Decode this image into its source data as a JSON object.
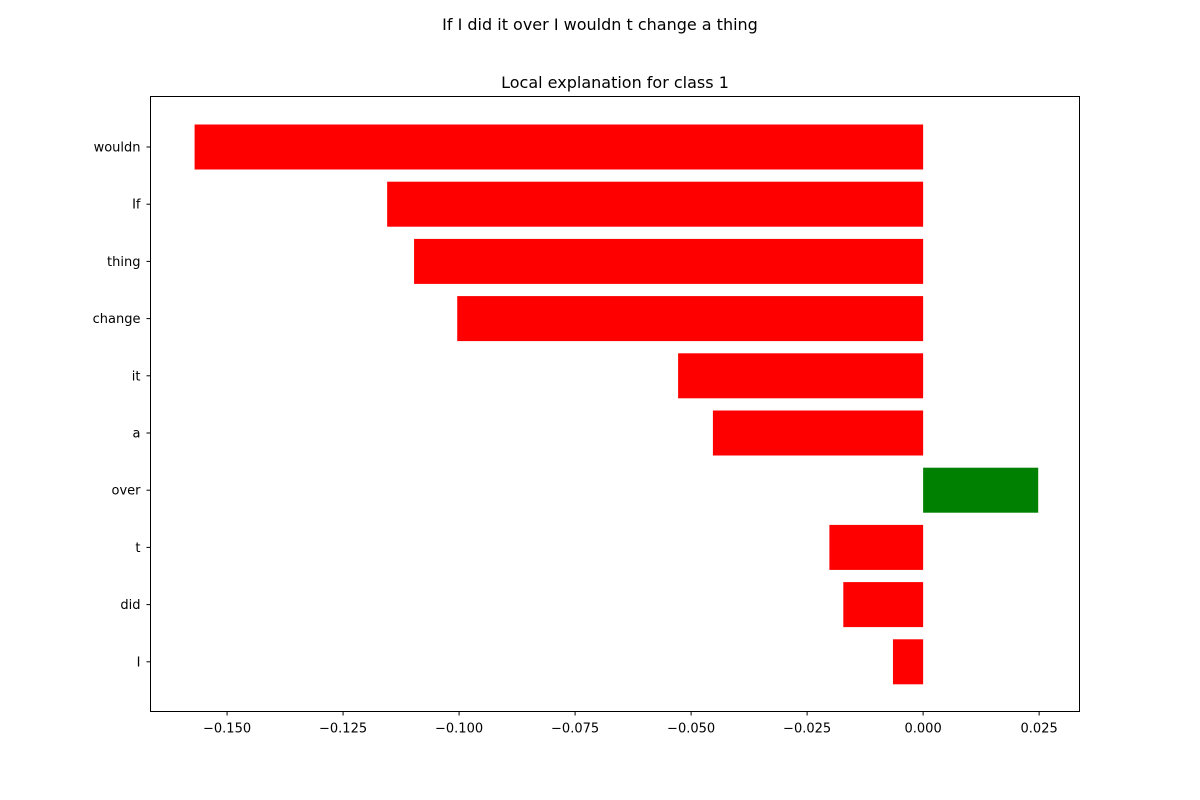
{
  "colors": {
    "negative": "#ff0000",
    "positive": "#008000",
    "axes": "#000000",
    "background": "#ffffff"
  },
  "chart_data": {
    "type": "bar",
    "orientation": "horizontal",
    "suptitle": "If I did it over I wouldn t change a thing",
    "title": "Local explanation for class 1",
    "xlabel": "",
    "ylabel": "",
    "categories": [
      "wouldn",
      "If",
      "thing",
      "change",
      "it",
      "a",
      "over",
      "t",
      "did",
      "I"
    ],
    "values": [
      -0.157,
      -0.1155,
      -0.1097,
      -0.1004,
      -0.0528,
      -0.0453,
      0.0248,
      -0.0202,
      -0.0172,
      -0.0065
    ],
    "xlim": [
      -0.1665,
      0.0337
    ],
    "xticks": [
      -0.15,
      -0.125,
      -0.1,
      -0.075,
      -0.05,
      -0.025,
      0.0,
      0.025
    ],
    "xtick_labels": [
      "−0.150",
      "−0.125",
      "−0.100",
      "−0.075",
      "−0.050",
      "−0.025",
      "0.000",
      "0.025"
    ],
    "grid": false,
    "legend": "none"
  }
}
